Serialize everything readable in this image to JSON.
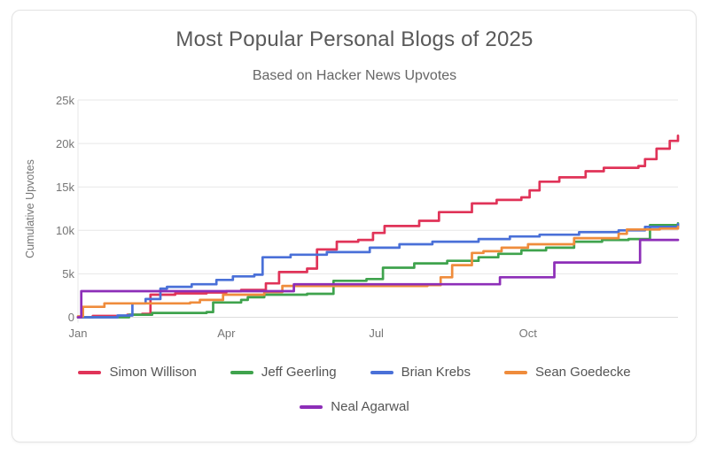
{
  "chart_data": {
    "type": "line",
    "title": "Most Popular Personal Blogs of 2025",
    "subtitle": "Based on Hacker News Upvotes",
    "ylabel": "Cumulative Upvotes",
    "xlabel": "",
    "x_unit": "day of year 2025",
    "xlim": [
      1,
      365
    ],
    "ylim": [
      0,
      25000
    ],
    "grid": "horizontal",
    "legend_position": "bottom",
    "interpolation": "step-after",
    "x_ticks": [
      {
        "day": 1,
        "label": "Jan"
      },
      {
        "day": 91,
        "label": "Apr"
      },
      {
        "day": 182,
        "label": "Jul"
      },
      {
        "day": 274,
        "label": "Oct"
      }
    ],
    "y_ticks": [
      {
        "value": 0,
        "label": "0"
      },
      {
        "value": 5000,
        "label": "5k"
      },
      {
        "value": 10000,
        "label": "10k"
      },
      {
        "value": 15000,
        "label": "15k"
      },
      {
        "value": 20000,
        "label": "20k"
      },
      {
        "value": 25000,
        "label": "25k"
      }
    ],
    "series": [
      {
        "name": "Simon Willison",
        "color": "#e03358",
        "points": [
          [
            1,
            0
          ],
          [
            10,
            150
          ],
          [
            31,
            300
          ],
          [
            40,
            400
          ],
          [
            45,
            2600
          ],
          [
            60,
            2750
          ],
          [
            79,
            2850
          ],
          [
            91,
            3000
          ],
          [
            100,
            3150
          ],
          [
            115,
            3900
          ],
          [
            123,
            5200
          ],
          [
            140,
            5600
          ],
          [
            146,
            7800
          ],
          [
            158,
            8700
          ],
          [
            171,
            8900
          ],
          [
            180,
            9700
          ],
          [
            187,
            10500
          ],
          [
            208,
            11100
          ],
          [
            220,
            12100
          ],
          [
            240,
            13100
          ],
          [
            255,
            13500
          ],
          [
            270,
            13800
          ],
          [
            275,
            14600
          ],
          [
            281,
            15600
          ],
          [
            293,
            16100
          ],
          [
            309,
            16800
          ],
          [
            320,
            17200
          ],
          [
            341,
            17400
          ],
          [
            345,
            18200
          ],
          [
            352,
            19400
          ],
          [
            360,
            20300
          ],
          [
            365,
            20900
          ]
        ]
      },
      {
        "name": "Jeff Geerling",
        "color": "#3fa34d",
        "points": [
          [
            1,
            0
          ],
          [
            32,
            300
          ],
          [
            46,
            500
          ],
          [
            79,
            600
          ],
          [
            83,
            1700
          ],
          [
            100,
            2000
          ],
          [
            104,
            2300
          ],
          [
            114,
            2600
          ],
          [
            140,
            2700
          ],
          [
            156,
            4200
          ],
          [
            176,
            4400
          ],
          [
            186,
            5700
          ],
          [
            205,
            6200
          ],
          [
            225,
            6500
          ],
          [
            244,
            6900
          ],
          [
            256,
            7300
          ],
          [
            270,
            7700
          ],
          [
            285,
            8000
          ],
          [
            302,
            8700
          ],
          [
            319,
            8900
          ],
          [
            335,
            9000
          ],
          [
            348,
            10600
          ],
          [
            365,
            10800
          ]
        ]
      },
      {
        "name": "Brian Krebs",
        "color": "#4a70d8",
        "points": [
          [
            1,
            0
          ],
          [
            25,
            200
          ],
          [
            34,
            1600
          ],
          [
            42,
            2100
          ],
          [
            51,
            3300
          ],
          [
            55,
            3500
          ],
          [
            70,
            3800
          ],
          [
            85,
            4300
          ],
          [
            95,
            4700
          ],
          [
            108,
            4900
          ],
          [
            113,
            6900
          ],
          [
            130,
            7200
          ],
          [
            152,
            7500
          ],
          [
            178,
            8000
          ],
          [
            196,
            8400
          ],
          [
            216,
            8700
          ],
          [
            244,
            9000
          ],
          [
            263,
            9300
          ],
          [
            281,
            9500
          ],
          [
            305,
            9800
          ],
          [
            329,
            10000
          ],
          [
            345,
            10400
          ],
          [
            365,
            10700
          ]
        ]
      },
      {
        "name": "Sean Goedecke",
        "color": "#ef8c3c",
        "points": [
          [
            1,
            100
          ],
          [
            4,
            1200
          ],
          [
            17,
            1600
          ],
          [
            69,
            1700
          ],
          [
            75,
            2000
          ],
          [
            89,
            2600
          ],
          [
            114,
            2900
          ],
          [
            125,
            3600
          ],
          [
            213,
            3700
          ],
          [
            221,
            4600
          ],
          [
            228,
            6000
          ],
          [
            240,
            7400
          ],
          [
            247,
            7600
          ],
          [
            258,
            8000
          ],
          [
            274,
            8400
          ],
          [
            302,
            9100
          ],
          [
            329,
            9600
          ],
          [
            334,
            10100
          ],
          [
            354,
            10200
          ],
          [
            365,
            10400
          ]
        ]
      },
      {
        "name": "Neal Agarwal",
        "color": "#8d2eb8",
        "points": [
          [
            1,
            0
          ],
          [
            3,
            3000
          ],
          [
            132,
            3800
          ],
          [
            257,
            4600
          ],
          [
            290,
            6300
          ],
          [
            342,
            8900
          ],
          [
            365,
            8900
          ]
        ]
      }
    ]
  },
  "legend": {
    "rows": [
      [
        "Simon Willison",
        "Jeff Geerling",
        "Brian Krebs",
        "Sean Goedecke"
      ],
      [
        "Neal Agarwal"
      ]
    ]
  }
}
